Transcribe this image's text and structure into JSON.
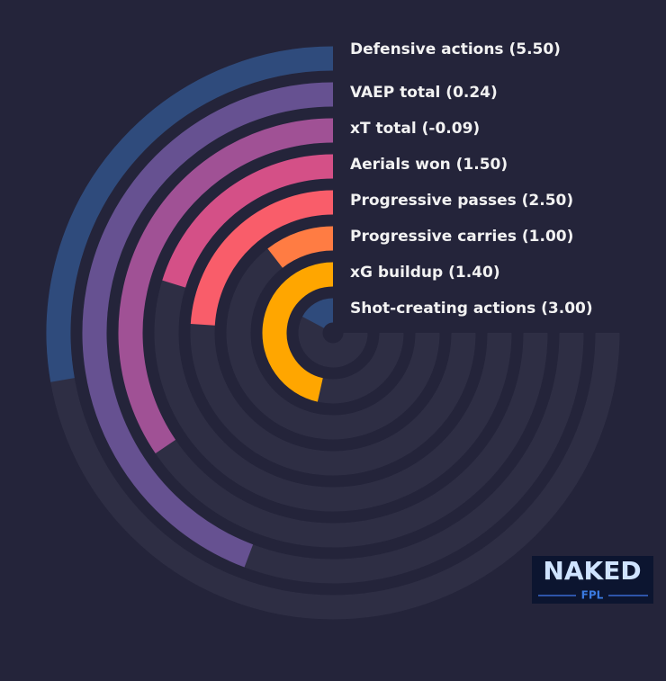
{
  "chart_data": {
    "type": "radial_bar",
    "categories": [
      "Defensive actions (5.50)",
      "VAEP total (0.24)",
      "xT total (-0.09)",
      "Aerials won (1.50)",
      "Progressive passes (2.50)",
      "Progressive carries (1.00)",
      "xG buildup (1.40)",
      "Shot-creating actions (3.00)"
    ],
    "values": [
      37,
      59,
      46,
      27,
      32,
      14,
      62,
      23
    ],
    "colors": [
      "#2f4b7c",
      "#665191",
      "#a05195",
      "#d45087",
      "#f95d6a",
      "#ff7c43",
      "#ffa600",
      "#2f4b7c"
    ],
    "ylim": [
      0,
      100
    ],
    "logo": {
      "title": "NAKED",
      "subtitle": "FPL"
    }
  }
}
